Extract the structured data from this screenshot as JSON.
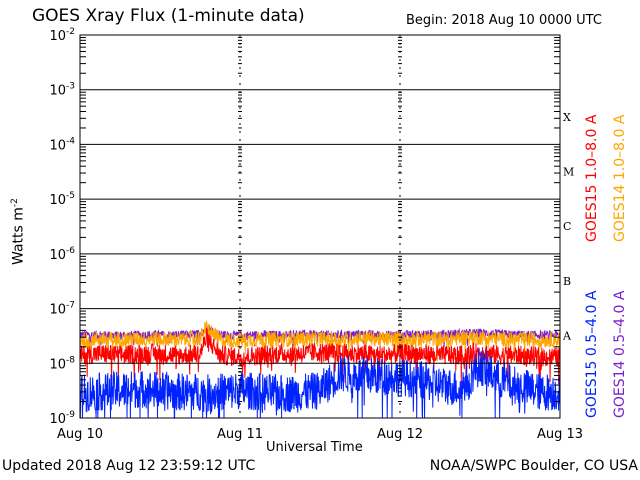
{
  "chart_data": {
    "type": "line",
    "title": "GOES Xray Flux (1-minute data)",
    "begin_label": "Begin:  2018 Aug 10 0000 UTC",
    "xlabel": "Universal Time",
    "ylabel": "Watts m",
    "ylabel_sup": "-2",
    "yscale": "log",
    "ylim": [
      1e-09,
      0.01
    ],
    "y_ticks": [
      {
        "base": "10",
        "exp": "-2",
        "value": 0.01
      },
      {
        "base": "10",
        "exp": "-3",
        "value": 0.001
      },
      {
        "base": "10",
        "exp": "-4",
        "value": 0.0001
      },
      {
        "base": "10",
        "exp": "-5",
        "value": 1e-05
      },
      {
        "base": "10",
        "exp": "-6",
        "value": 1e-06
      },
      {
        "base": "10",
        "exp": "-7",
        "value": 1e-07
      },
      {
        "base": "10",
        "exp": "-8",
        "value": 1e-08
      },
      {
        "base": "10",
        "exp": "-9",
        "value": 1e-09
      }
    ],
    "x_ticks": [
      "Aug 10",
      "Aug 11",
      "Aug 12",
      "Aug 13"
    ],
    "xlim_days": [
      0,
      3
    ],
    "flare_classes": [
      {
        "label": "X",
        "value": 0.00032
      },
      {
        "label": "M",
        "value": 3.2e-05
      },
      {
        "label": "C",
        "value": 3.2e-06
      },
      {
        "label": "B",
        "value": 3.2e-07
      },
      {
        "label": "A",
        "value": 3.2e-08
      }
    ],
    "x_hours": [
      0,
      3,
      6,
      9,
      12,
      15,
      18,
      19,
      21,
      24,
      27,
      30,
      33,
      36,
      39,
      42,
      45,
      48,
      51,
      54,
      57,
      60,
      63,
      66,
      69,
      72
    ],
    "series": [
      {
        "name": "GOES14 0.5-4.0 A",
        "color": "#7a1fd0",
        "noise": 0.08,
        "values": [
          3.3e-08,
          3.3e-08,
          3.2e-08,
          3.3e-08,
          3.3e-08,
          3.3e-08,
          3.4e-08,
          4.5e-08,
          3.3e-08,
          3.2e-08,
          3.3e-08,
          3.3e-08,
          3.4e-08,
          3.3e-08,
          3.3e-08,
          3.4e-08,
          3.3e-08,
          3.3e-08,
          3.4e-08,
          3.4e-08,
          3.5e-08,
          3.6e-08,
          3.4e-08,
          3.3e-08,
          3.3e-08,
          3.3e-08
        ]
      },
      {
        "name": "GOES14 1.0-8.0 A",
        "color": "#ffa500",
        "noise": 0.14,
        "values": [
          2.7e-08,
          2.8e-08,
          2.7e-08,
          2.8e-08,
          2.8e-08,
          2.7e-08,
          2.9e-08,
          4.5e-08,
          2.7e-08,
          2.6e-08,
          2.8e-08,
          2.7e-08,
          2.8e-08,
          2.8e-08,
          2.7e-08,
          2.9e-08,
          2.8e-08,
          2.8e-08,
          2.8e-08,
          2.8e-08,
          2.9e-08,
          3e-08,
          2.8e-08,
          2.7e-08,
          2.7e-08,
          2.7e-08
        ]
      },
      {
        "name": "GOES15 1.0-8.0 A",
        "color": "#ff0000",
        "noise": 0.18,
        "values": [
          1.4e-08,
          1.5e-08,
          1.4e-08,
          1.5e-08,
          1.5e-08,
          1.4e-08,
          1.5e-08,
          3e-08,
          1.4e-08,
          1.3e-08,
          1.4e-08,
          1.5e-08,
          1.5e-08,
          1.6e-08,
          1.5e-08,
          1.5e-08,
          1.4e-08,
          1.5e-08,
          1.5e-08,
          1.4e-08,
          1.4e-08,
          1.6e-08,
          1.4e-08,
          1.4e-08,
          1.3e-08,
          1.3e-08
        ]
      },
      {
        "name": "GOES15 0.5-4.0 A",
        "color": "#0022ff",
        "noise": 0.35,
        "values": [
          2.8e-09,
          3e-09,
          3.2e-09,
          3.4e-09,
          3.2e-09,
          3e-09,
          3e-09,
          2.8e-09,
          3e-09,
          3.2e-09,
          3e-09,
          2.8e-09,
          2.8e-09,
          3.2e-09,
          6.5e-09,
          6e-09,
          5.8e-09,
          5.5e-09,
          5e-09,
          4e-09,
          3.5e-09,
          9e-09,
          5e-09,
          3.8e-09,
          3e-09,
          3e-09
        ]
      }
    ],
    "legend_labels": [
      {
        "text": "GOES15 1.0–8.0 A",
        "color": "#ff0000"
      },
      {
        "text": "GOES14 1.0–8.0 A",
        "color": "#ffa500"
      },
      {
        "text": "GOES15 0.5–4.0 A",
        "color": "#0022ff"
      },
      {
        "text": "GOES14 0.5–4.0 A",
        "color": "#7a1fd0"
      }
    ],
    "legend_placement": "right",
    "updated": "Updated 2018 Aug 12 23:59:12 UTC",
    "credit": "NOAA/SWPC Boulder, CO USA"
  }
}
